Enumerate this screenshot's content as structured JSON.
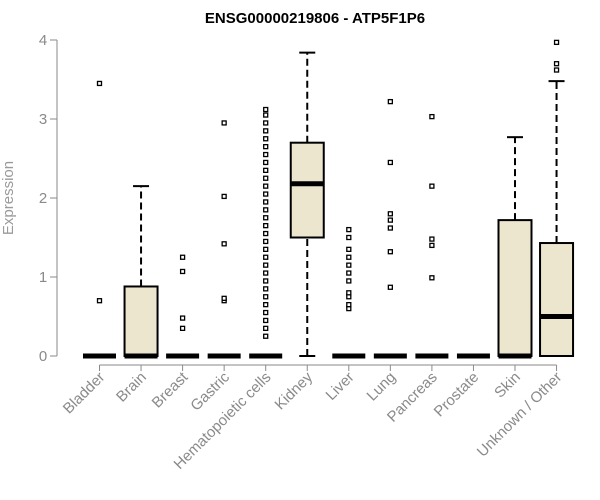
{
  "chart_data": {
    "type": "boxplot",
    "title": "ENSG00000219806 - ATP5F1P6",
    "xlabel": "",
    "ylabel": "Expression",
    "ylim": [
      0,
      4
    ],
    "yticks": [
      0,
      1,
      2,
      3,
      4
    ],
    "box_fill": "#ede6cf",
    "categories": [
      "Bladder",
      "Brain",
      "Breast",
      "Gastric",
      "Hematopoietic cells",
      "Kidney",
      "Liver",
      "Lung",
      "Pancreas",
      "Prostate",
      "Skin",
      "Unknown / Other"
    ],
    "series": [
      {
        "name": "Bladder",
        "min": 0,
        "q1": 0,
        "median": 0,
        "q3": 0,
        "max": 0,
        "outliers": [
          0.7,
          3.45
        ]
      },
      {
        "name": "Brain",
        "min": 0,
        "q1": 0,
        "median": 0,
        "q3": 0.88,
        "max": 2.15,
        "outliers": []
      },
      {
        "name": "Breast",
        "min": 0,
        "q1": 0,
        "median": 0,
        "q3": 0,
        "max": 0,
        "outliers": [
          0.35,
          0.48,
          1.07,
          1.25
        ]
      },
      {
        "name": "Gastric",
        "min": 0,
        "q1": 0,
        "median": 0,
        "q3": 0,
        "max": 0,
        "outliers": [
          0.7,
          0.73,
          1.42,
          2.02,
          2.95
        ]
      },
      {
        "name": "Hematopoietic cells",
        "min": 0,
        "q1": 0,
        "median": 0,
        "q3": 0,
        "max": 0,
        "outliers": [
          0.25,
          0.35,
          0.45,
          0.55,
          0.65,
          0.75,
          0.85,
          0.95,
          1.05,
          1.15,
          1.25,
          1.35,
          1.45,
          1.55,
          1.65,
          1.75,
          1.85,
          1.95,
          2.05,
          2.15,
          2.25,
          2.35,
          2.45,
          2.55,
          2.65,
          2.75,
          2.85,
          2.95,
          3.05,
          3.12
        ]
      },
      {
        "name": "Kidney",
        "min": 0,
        "q1": 1.5,
        "median": 2.18,
        "q3": 2.7,
        "max": 3.84,
        "outliers": []
      },
      {
        "name": "Liver",
        "min": 0,
        "q1": 0,
        "median": 0,
        "q3": 0,
        "max": 0,
        "outliers": [
          0.6,
          0.65,
          0.75,
          0.8,
          0.95,
          1.05,
          1.15,
          1.25,
          1.35,
          1.5,
          1.6
        ]
      },
      {
        "name": "Lung",
        "min": 0,
        "q1": 0,
        "median": 0,
        "q3": 0,
        "max": 0,
        "outliers": [
          0.87,
          1.32,
          1.62,
          1.72,
          1.8,
          2.45,
          3.22
        ]
      },
      {
        "name": "Pancreas",
        "min": 0,
        "q1": 0,
        "median": 0,
        "q3": 0,
        "max": 0,
        "outliers": [
          0.99,
          1.4,
          1.48,
          2.15,
          3.03
        ]
      },
      {
        "name": "Prostate",
        "min": 0,
        "q1": 0,
        "median": 0,
        "q3": 0,
        "max": 0,
        "outliers": []
      },
      {
        "name": "Skin",
        "min": 0,
        "q1": 0,
        "median": 0,
        "q3": 1.72,
        "max": 2.77,
        "outliers": []
      },
      {
        "name": "Unknown / Other",
        "min": 0,
        "q1": 0,
        "median": 0.5,
        "q3": 1.43,
        "max": 3.48,
        "outliers": [
          3.62,
          3.7,
          3.97
        ]
      }
    ]
  }
}
